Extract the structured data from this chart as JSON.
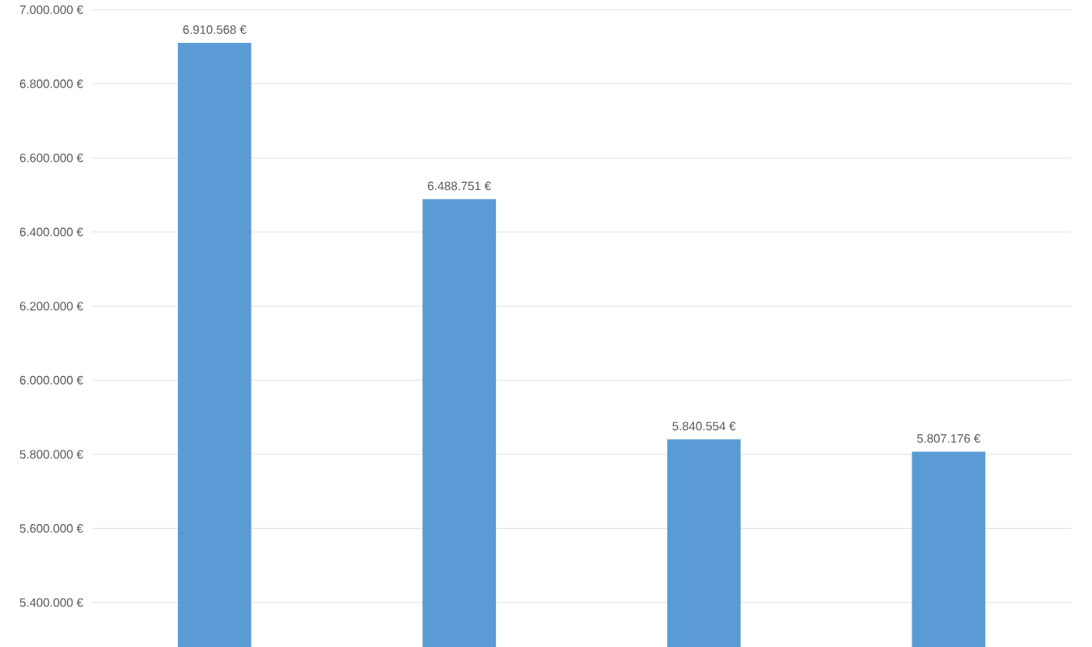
{
  "chart_data": {
    "type": "bar",
    "categories": [
      null,
      null,
      null,
      null
    ],
    "values": [
      6910568,
      6488751,
      5840554,
      5807176
    ],
    "value_labels": [
      "6.910.568 €",
      "6.488.751 €",
      "5.840.554 €",
      "5.807.176 €"
    ],
    "color": "#5b9bd5",
    "ylim": [
      5280000,
      7000000
    ],
    "yticks": [
      {
        "value": 5400000,
        "label": "5.400.000 €"
      },
      {
        "value": 5600000,
        "label": "5.600.000 €"
      },
      {
        "value": 5800000,
        "label": "5.800.000 €"
      },
      {
        "value": 6000000,
        "label": "6.000.000 €"
      },
      {
        "value": 6200000,
        "label": "6.200.000 €"
      },
      {
        "value": 6400000,
        "label": "6.400.000 €"
      },
      {
        "value": 6600000,
        "label": "6.600.000 €"
      },
      {
        "value": 6800000,
        "label": "6.800.000 €"
      },
      {
        "value": 7000000,
        "label": "7.000.000 €"
      }
    ],
    "grid": "y"
  }
}
